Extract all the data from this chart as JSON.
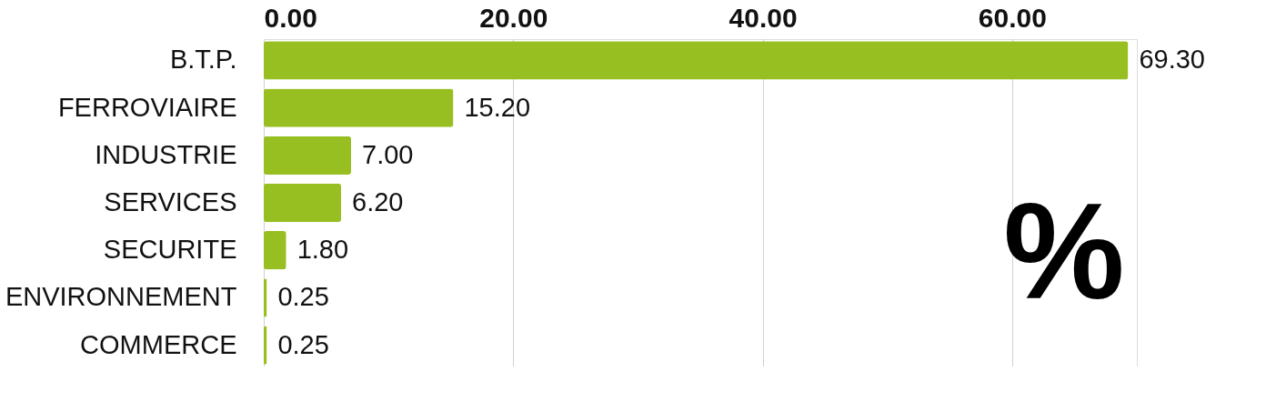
{
  "chart_data": {
    "type": "bar",
    "orientation": "horizontal",
    "categories": [
      "B.T.P.",
      "FERROVIAIRE",
      "INDUSTRIE",
      "SERVICES",
      "SECURITE",
      "ENVIRONNEMENT",
      "COMMERCE"
    ],
    "values": [
      69.3,
      15.2,
      7.0,
      6.2,
      1.8,
      0.25,
      0.25
    ],
    "value_labels": [
      "69.30",
      "15.20",
      "7.00",
      "6.20",
      "1.80",
      "0.25",
      "0.25"
    ],
    "color": "#97bf22",
    "xlim": [
      0,
      70
    ],
    "xticks": [
      {
        "value": 0,
        "label": "0.00"
      },
      {
        "value": 20,
        "label": "20.00"
      },
      {
        "value": 40,
        "label": "40.00"
      },
      {
        "value": 60,
        "label": "60.00"
      }
    ],
    "grid": "x",
    "annotations": [
      "%"
    ]
  }
}
